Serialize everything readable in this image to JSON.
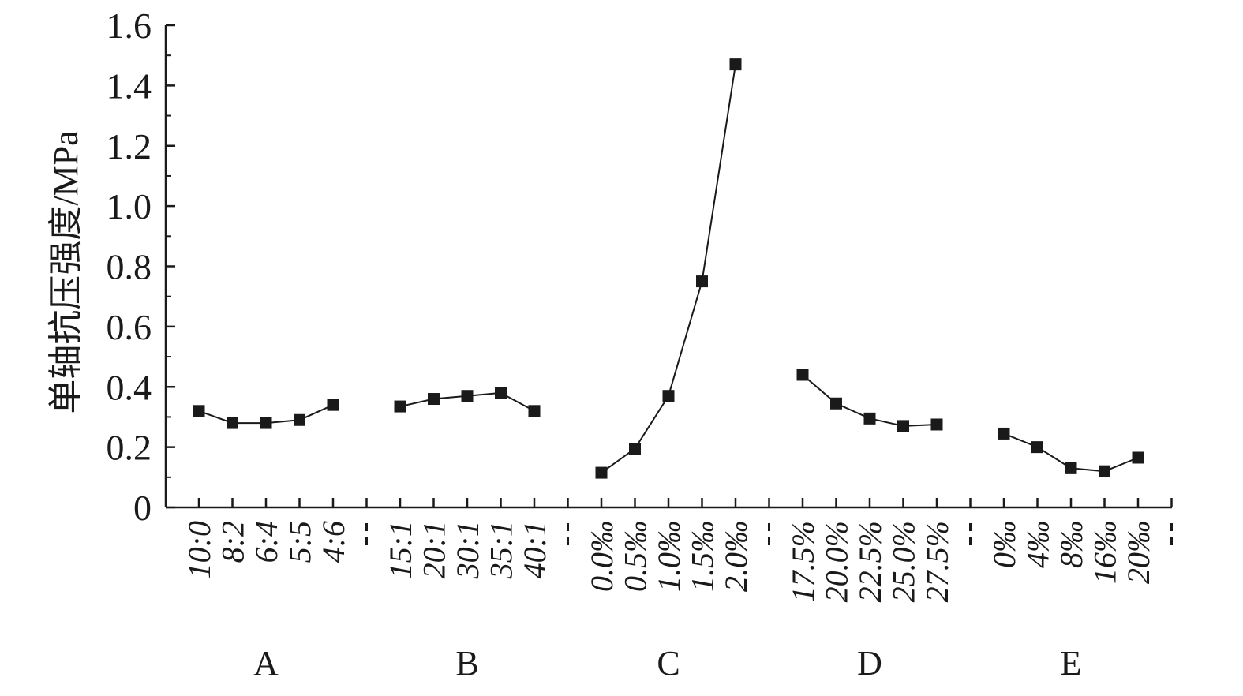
{
  "chart_data": {
    "type": "line",
    "ylabel": "单轴抗压强度/MPa",
    "ylim": [
      0,
      1.6
    ],
    "yticks": [
      "0",
      "0.2",
      "0.4",
      "0.6",
      "0.8",
      "1.0",
      "1.2",
      "1.4",
      "1.6"
    ],
    "grid": false,
    "legend": "none",
    "colors": {
      "line": "#1a1a1a",
      "marker": "#1a1a1a",
      "axis": "#1a1a1a"
    },
    "groups": [
      {
        "name": "A",
        "categories": [
          "10:0",
          "8:2",
          "6:4",
          "5:5",
          "4:6"
        ],
        "values": [
          0.32,
          0.28,
          0.28,
          0.29,
          0.34
        ]
      },
      {
        "name": "B",
        "categories": [
          "15:1",
          "20:1",
          "30:1",
          "35:1",
          "40:1"
        ],
        "values": [
          0.335,
          0.36,
          0.37,
          0.38,
          0.32
        ]
      },
      {
        "name": "C",
        "categories": [
          "0.0‰",
          "0.5‰",
          "1.0‰",
          "1.5‰",
          "2.0‰"
        ],
        "values": [
          0.115,
          0.195,
          0.37,
          0.75,
          1.47
        ]
      },
      {
        "name": "D",
        "categories": [
          "17.5%",
          "20.0%",
          "22.5%",
          "25.0%",
          "27.5%"
        ],
        "values": [
          0.44,
          0.345,
          0.295,
          0.27,
          0.275
        ]
      },
      {
        "name": "E",
        "categories": [
          "0‰",
          "4‰",
          "8‰",
          "16‰",
          "20‰"
        ],
        "values": [
          0.245,
          0.2,
          0.13,
          0.12,
          0.165
        ]
      }
    ]
  }
}
